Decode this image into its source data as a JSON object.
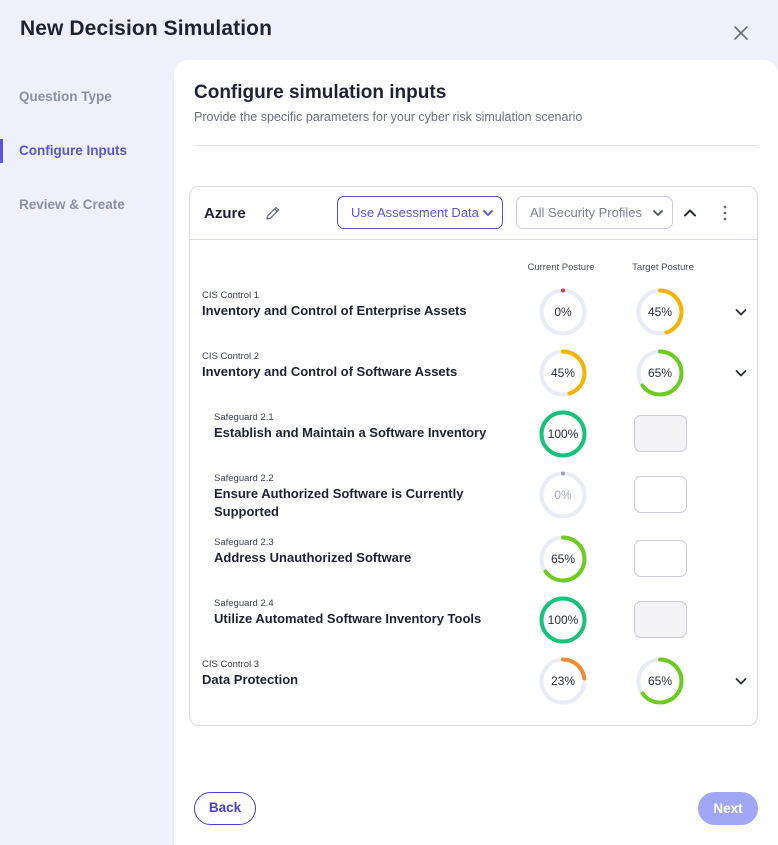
{
  "modal": {
    "title": "New Decision Simulation"
  },
  "steps": [
    {
      "label": "Question Type",
      "active": false
    },
    {
      "label": "Configure Inputs",
      "active": true
    },
    {
      "label": "Review & Create",
      "active": false
    }
  ],
  "section": {
    "title": "Configure simulation inputs",
    "subtitle": "Provide the specific parameters for your cyber risk simulation scenario"
  },
  "card": {
    "name": "Azure",
    "data_source": "Use Assessment Data",
    "profile_filter": "All Security Profiles",
    "col_current": "Current Posture",
    "col_target": "Target Posture",
    "rows": [
      {
        "label": "CIS Control 1",
        "name": "Inventory and Control of Enterprise Assets",
        "current": "0%",
        "current_value": 0,
        "target": "45%",
        "target_value": 45,
        "current_color": "#e23b3b",
        "target_color": "#f4b400"
      },
      {
        "label": "CIS Control 2",
        "name": "Inventory and Control of Software Assets",
        "current": "45%",
        "current_value": 45,
        "target": "65%",
        "target_value": 65,
        "current_color": "#f4b400",
        "target_color": "#6dcc1f"
      },
      {
        "label": "Safeguard 2.1",
        "name": "Establish and Maintain a Software Inventory",
        "current": "100%",
        "current_value": 100,
        "current_color": "#17c37b",
        "input_disabled": true
      },
      {
        "label": "Safeguard 2.2",
        "name_line1": "Ensure Authorized Software is Currently",
        "name_line2": "Supported",
        "current": "0%",
        "current_value": 0,
        "current_color": "#9aa0bd",
        "input_disabled": false
      },
      {
        "label": "Safeguard 2.3",
        "name": "Address Unauthorized Software",
        "current": "65%",
        "current_value": 65,
        "current_color": "#6dcc1f",
        "input_disabled": false
      },
      {
        "label": "Safeguard 2.4",
        "name": "Utilize Automated Software Inventory Tools",
        "current": "100%",
        "current_value": 100,
        "current_color": "#17c37b",
        "input_disabled": true
      },
      {
        "label": "CIS Control 3",
        "name": "Data Protection",
        "current": "23%",
        "current_value": 23,
        "target": "65%",
        "target_value": 65,
        "current_color": "#f58a2e",
        "target_color": "#6dcc1f"
      }
    ]
  },
  "footer": {
    "back_label": "Back",
    "next_label": "Next"
  },
  "colors": {
    "accent": "#5a52e0",
    "track": "#e9ecf6"
  }
}
